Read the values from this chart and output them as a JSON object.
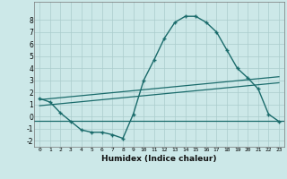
{
  "xlabel": "Humidex (Indice chaleur)",
  "bg_color": "#cce8e8",
  "grid_color": "#aacccc",
  "line_color": "#1a6b6b",
  "curve1_x": [
    0,
    1,
    2,
    3,
    4,
    5,
    6,
    7,
    8,
    9,
    10,
    11,
    12,
    13,
    14,
    15,
    16,
    17,
    18,
    19,
    20,
    21,
    22,
    23
  ],
  "curve1_y": [
    1.5,
    1.2,
    0.3,
    -0.4,
    -1.1,
    -1.3,
    -1.3,
    -1.5,
    -1.8,
    0.2,
    3.0,
    4.7,
    6.5,
    7.8,
    8.3,
    8.3,
    7.8,
    7.0,
    5.5,
    4.0,
    3.2,
    2.3,
    0.2,
    -0.4
  ],
  "line2_x": [
    0,
    23
  ],
  "line2_y": [
    1.4,
    3.3
  ],
  "line3_x": [
    0,
    23
  ],
  "line3_y": [
    0.9,
    2.8
  ],
  "hline_y": -0.35,
  "xlim": [
    -0.5,
    23.5
  ],
  "ylim": [
    -2.5,
    9.5
  ],
  "yticks": [
    -2,
    -1,
    0,
    1,
    2,
    3,
    4,
    5,
    6,
    7,
    8
  ],
  "xticks": [
    0,
    1,
    2,
    3,
    4,
    5,
    6,
    7,
    8,
    9,
    10,
    11,
    12,
    13,
    14,
    15,
    16,
    17,
    18,
    19,
    20,
    21,
    22,
    23
  ],
  "marker": "+"
}
